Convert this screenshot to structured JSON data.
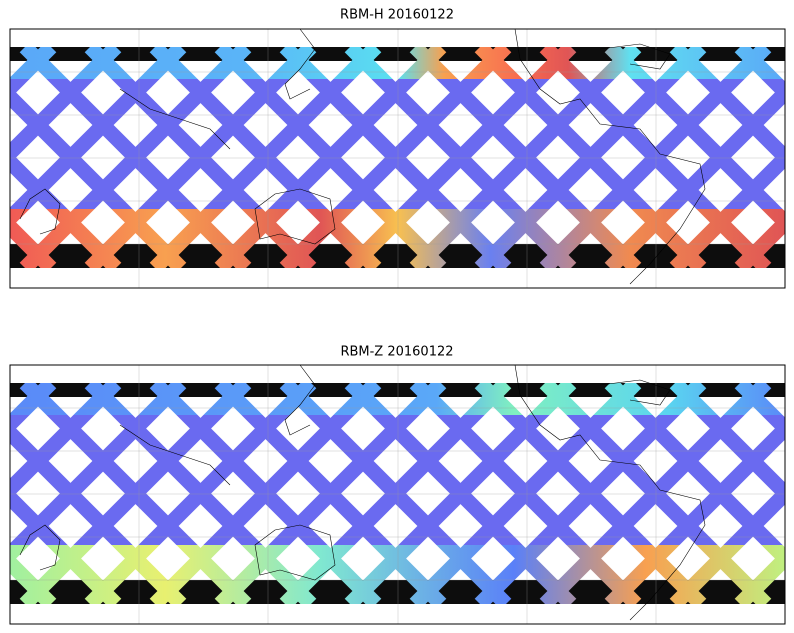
{
  "panels": [
    {
      "title": "RBM-H 20160122"
    },
    {
      "title": "RBM-Z 20160122"
    }
  ]
}
